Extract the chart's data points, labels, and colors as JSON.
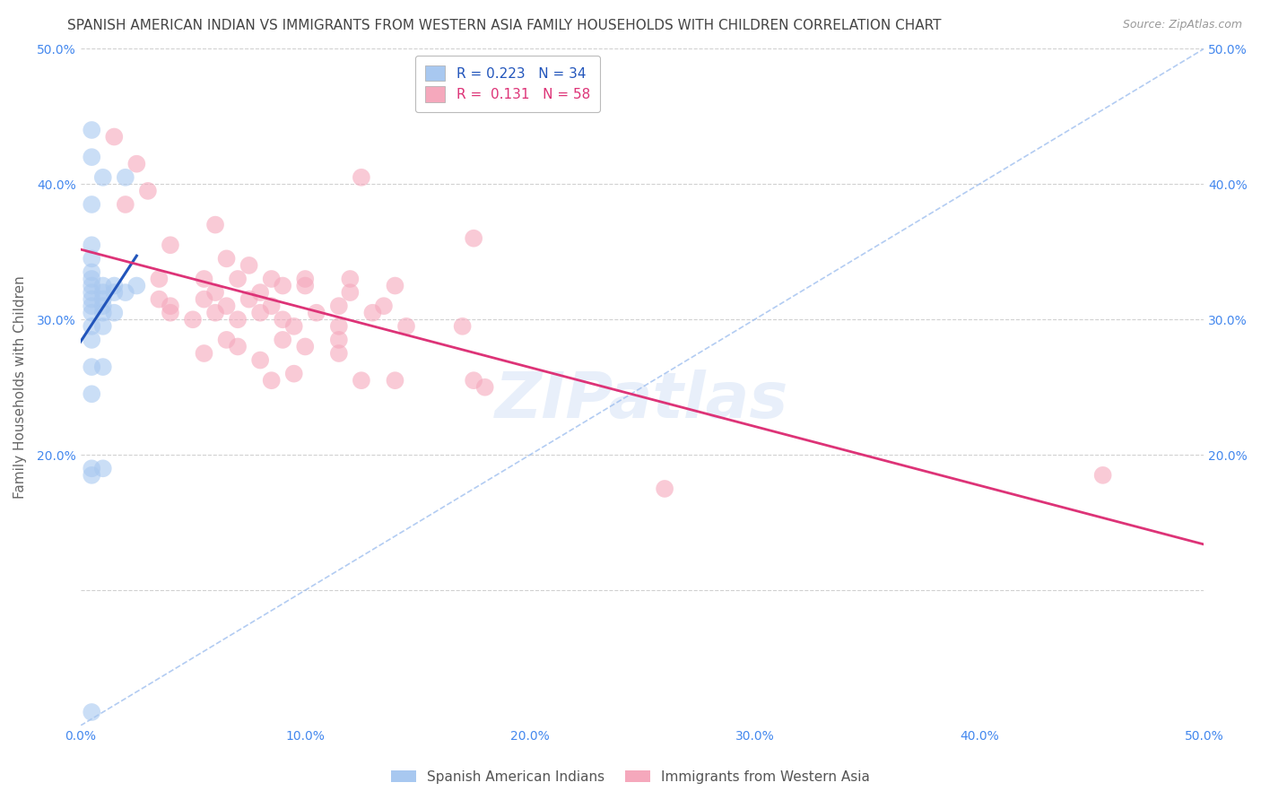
{
  "title": "SPANISH AMERICAN INDIAN VS IMMIGRANTS FROM WESTERN ASIA FAMILY HOUSEHOLDS WITH CHILDREN CORRELATION CHART",
  "source": "Source: ZipAtlas.com",
  "ylabel": "Family Households with Children",
  "xlim": [
    0.0,
    0.5
  ],
  "ylim": [
    0.0,
    0.5
  ],
  "x_ticks": [
    0.0,
    0.1,
    0.2,
    0.3,
    0.4,
    0.5
  ],
  "y_ticks": [
    0.0,
    0.1,
    0.2,
    0.3,
    0.4,
    0.5
  ],
  "legend_labels": [
    "Spanish American Indians",
    "Immigrants from Western Asia"
  ],
  "R_blue": 0.223,
  "N_blue": 34,
  "R_pink": 0.131,
  "N_pink": 58,
  "blue_color": "#A8C8F0",
  "pink_color": "#F5A8BC",
  "blue_line_color": "#2255BB",
  "pink_line_color": "#DD3377",
  "watermark": "ZIPatlas",
  "background_color": "#FFFFFF",
  "grid_color": "#CCCCCC",
  "title_color": "#444444",
  "axis_label_color": "#4488EE",
  "title_fontsize": 11,
  "source_fontsize": 9,
  "legend_fontsize": 11,
  "blue_scatter": [
    [
      0.005,
      0.44
    ],
    [
      0.005,
      0.42
    ],
    [
      0.01,
      0.405
    ],
    [
      0.02,
      0.405
    ],
    [
      0.005,
      0.385
    ],
    [
      0.005,
      0.355
    ],
    [
      0.005,
      0.345
    ],
    [
      0.005,
      0.335
    ],
    [
      0.005,
      0.33
    ],
    [
      0.005,
      0.325
    ],
    [
      0.01,
      0.325
    ],
    [
      0.015,
      0.325
    ],
    [
      0.005,
      0.32
    ],
    [
      0.01,
      0.32
    ],
    [
      0.015,
      0.32
    ],
    [
      0.005,
      0.315
    ],
    [
      0.01,
      0.315
    ],
    [
      0.005,
      0.31
    ],
    [
      0.01,
      0.31
    ],
    [
      0.005,
      0.305
    ],
    [
      0.01,
      0.305
    ],
    [
      0.015,
      0.305
    ],
    [
      0.02,
      0.32
    ],
    [
      0.025,
      0.325
    ],
    [
      0.005,
      0.295
    ],
    [
      0.01,
      0.295
    ],
    [
      0.005,
      0.285
    ],
    [
      0.005,
      0.265
    ],
    [
      0.01,
      0.265
    ],
    [
      0.005,
      0.245
    ],
    [
      0.005,
      0.19
    ],
    [
      0.01,
      0.19
    ],
    [
      0.005,
      0.185
    ],
    [
      0.005,
      0.01
    ]
  ],
  "pink_scatter": [
    [
      0.015,
      0.435
    ],
    [
      0.025,
      0.415
    ],
    [
      0.02,
      0.385
    ],
    [
      0.03,
      0.395
    ],
    [
      0.125,
      0.405
    ],
    [
      0.06,
      0.37
    ],
    [
      0.175,
      0.36
    ],
    [
      0.04,
      0.355
    ],
    [
      0.065,
      0.345
    ],
    [
      0.075,
      0.34
    ],
    [
      0.035,
      0.33
    ],
    [
      0.055,
      0.33
    ],
    [
      0.07,
      0.33
    ],
    [
      0.085,
      0.33
    ],
    [
      0.1,
      0.33
    ],
    [
      0.12,
      0.33
    ],
    [
      0.09,
      0.325
    ],
    [
      0.1,
      0.325
    ],
    [
      0.14,
      0.325
    ],
    [
      0.06,
      0.32
    ],
    [
      0.08,
      0.32
    ],
    [
      0.12,
      0.32
    ],
    [
      0.035,
      0.315
    ],
    [
      0.055,
      0.315
    ],
    [
      0.075,
      0.315
    ],
    [
      0.04,
      0.31
    ],
    [
      0.065,
      0.31
    ],
    [
      0.085,
      0.31
    ],
    [
      0.115,
      0.31
    ],
    [
      0.135,
      0.31
    ],
    [
      0.04,
      0.305
    ],
    [
      0.06,
      0.305
    ],
    [
      0.08,
      0.305
    ],
    [
      0.105,
      0.305
    ],
    [
      0.13,
      0.305
    ],
    [
      0.05,
      0.3
    ],
    [
      0.07,
      0.3
    ],
    [
      0.09,
      0.3
    ],
    [
      0.095,
      0.295
    ],
    [
      0.115,
      0.295
    ],
    [
      0.145,
      0.295
    ],
    [
      0.17,
      0.295
    ],
    [
      0.065,
      0.285
    ],
    [
      0.09,
      0.285
    ],
    [
      0.115,
      0.285
    ],
    [
      0.07,
      0.28
    ],
    [
      0.1,
      0.28
    ],
    [
      0.055,
      0.275
    ],
    [
      0.115,
      0.275
    ],
    [
      0.08,
      0.27
    ],
    [
      0.095,
      0.26
    ],
    [
      0.085,
      0.255
    ],
    [
      0.125,
      0.255
    ],
    [
      0.14,
      0.255
    ],
    [
      0.175,
      0.255
    ],
    [
      0.18,
      0.25
    ],
    [
      0.26,
      0.175
    ],
    [
      0.455,
      0.185
    ]
  ]
}
